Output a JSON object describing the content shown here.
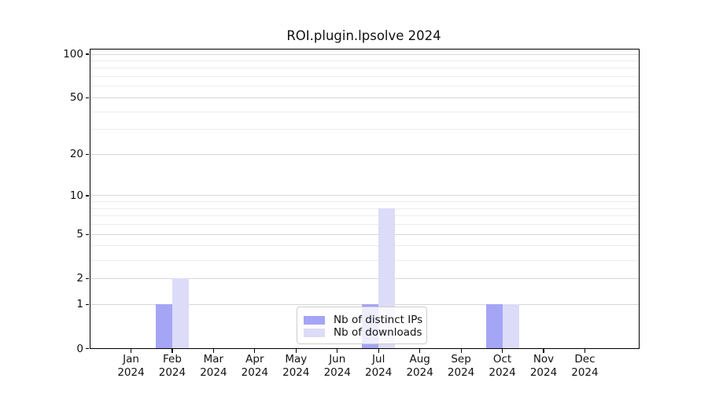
{
  "chart_data": {
    "type": "bar",
    "title": "ROI.plugin.lpsolve 2024",
    "categories": [
      "Jan 2024",
      "Feb 2024",
      "Mar 2024",
      "Apr 2024",
      "May 2024",
      "Jun 2024",
      "Jul 2024",
      "Aug 2024",
      "Sep 2024",
      "Oct 2024",
      "Nov 2024",
      "Dec 2024"
    ],
    "series": [
      {
        "name": "Nb of distinct IPs",
        "color": "#a5a5f5",
        "values": [
          0,
          1,
          0,
          0,
          0,
          0,
          1,
          0,
          0,
          1,
          0,
          0
        ]
      },
      {
        "name": "Nb of downloads",
        "color": "#dcdcf8",
        "values": [
          0,
          2,
          0,
          0,
          0,
          0,
          8,
          0,
          0,
          1,
          0,
          0
        ]
      }
    ],
    "y_axis": {
      "scale": "log1p",
      "ticks": [
        0,
        1,
        2,
        5,
        10,
        20,
        50,
        100
      ],
      "minor_gridlines": [
        3,
        4,
        6,
        7,
        8,
        9,
        30,
        40,
        60,
        70,
        80,
        90
      ],
      "ylim": [
        0,
        100
      ]
    },
    "legend": {
      "position": "bottom-center",
      "entries": [
        "Nb of distinct IPs",
        "Nb of downloads"
      ]
    },
    "grid": true,
    "colors": {
      "major_grid": "#d6d6d6",
      "minor_grid": "#ececec",
      "spine": "#000000",
      "text": "#111111",
      "background": "#ffffff"
    }
  }
}
